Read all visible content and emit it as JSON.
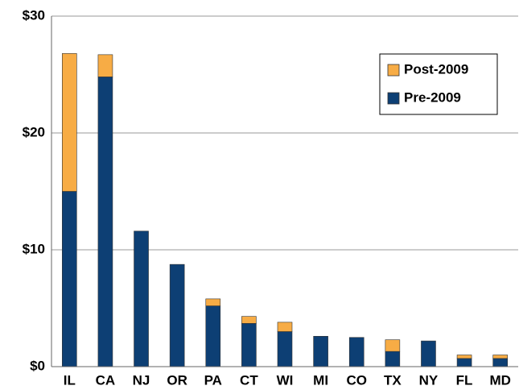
{
  "chart_data": {
    "type": "stacked_bar",
    "categories": [
      "IL",
      "CA",
      "NJ",
      "OR",
      "PA",
      "CT",
      "WI",
      "MI",
      "CO",
      "TX",
      "NY",
      "FL",
      "MD"
    ],
    "series": [
      {
        "name": "Pre-2009",
        "color": "#0d3f74",
        "values": [
          15.0,
          24.8,
          11.6,
          8.75,
          5.2,
          3.7,
          3.0,
          2.6,
          2.5,
          1.3,
          2.2,
          0.7,
          0.7
        ]
      },
      {
        "name": "Post-2009",
        "color": "#f7ac45",
        "values": [
          11.8,
          1.9,
          0,
          0,
          0.6,
          0.6,
          0.8,
          0,
          0,
          1.0,
          0,
          0.3,
          0.3
        ]
      }
    ],
    "ylim": [
      0,
      30
    ],
    "yticks": [
      {
        "value": 0,
        "label": "$0"
      },
      {
        "value": 10,
        "label": "$10"
      },
      {
        "value": 20,
        "label": "$20"
      },
      {
        "value": 30,
        "label": "$30"
      }
    ],
    "grid": true,
    "legend": "upper-right"
  }
}
